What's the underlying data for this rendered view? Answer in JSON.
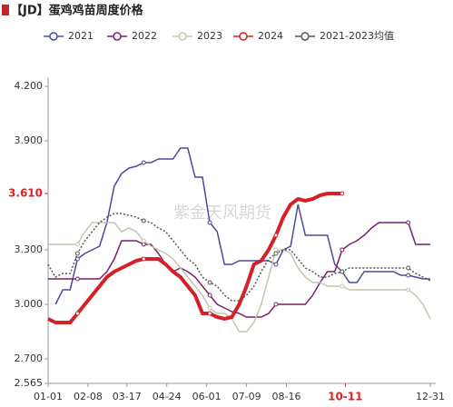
{
  "chart_data": {
    "type": "line",
    "title": "【JD】蛋鸡鸡苗周度价格",
    "watermark": "紫金天风期货",
    "x": [
      0,
      7,
      14,
      21,
      28,
      35,
      42,
      49,
      56,
      63,
      70,
      77,
      84,
      91,
      98,
      105,
      112,
      119,
      126,
      133,
      140,
      147,
      154,
      161,
      168,
      175,
      182,
      189,
      196,
      203,
      210,
      217,
      224,
      231,
      238,
      245,
      252,
      259,
      266,
      273,
      280,
      287,
      294,
      301,
      308,
      315,
      322,
      329,
      336,
      343,
      350,
      357,
      364
    ],
    "series": [
      {
        "name": "2021",
        "color": "#4a4a9a",
        "width": 1.5,
        "values": [
          null,
          3.0,
          3.08,
          3.08,
          3.25,
          3.28,
          3.3,
          3.32,
          3.45,
          3.65,
          3.72,
          3.75,
          3.76,
          3.78,
          3.78,
          3.8,
          3.8,
          3.8,
          3.86,
          3.86,
          3.7,
          3.7,
          3.45,
          3.4,
          3.22,
          3.22,
          3.24,
          3.24,
          3.24,
          3.24,
          3.24,
          3.22,
          3.3,
          3.32,
          3.55,
          3.38,
          3.38,
          3.38,
          3.38,
          3.22,
          3.18,
          3.12,
          3.12,
          3.18,
          3.18,
          3.18,
          3.18,
          3.18,
          3.16,
          3.16,
          3.15,
          3.14,
          3.14
        ]
      },
      {
        "name": "2022",
        "color": "#7a1f6a",
        "width": 1.5,
        "values": [
          3.14,
          3.14,
          3.14,
          3.14,
          3.14,
          3.14,
          3.14,
          3.14,
          3.18,
          3.25,
          3.35,
          3.35,
          3.35,
          3.33,
          3.33,
          3.28,
          3.22,
          3.18,
          3.2,
          3.18,
          3.15,
          3.1,
          3.05,
          3.0,
          2.98,
          2.96,
          2.95,
          2.93,
          2.93,
          2.93,
          2.95,
          3.0,
          3.0,
          3.0,
          3.0,
          3.0,
          3.05,
          3.12,
          3.18,
          3.18,
          3.3,
          3.33,
          3.35,
          3.38,
          3.42,
          3.45,
          3.45,
          3.45,
          3.45,
          3.45,
          3.33,
          3.33,
          3.33
        ]
      },
      {
        "name": "2023",
        "color": "#c8c2b0",
        "width": 1.5,
        "values": [
          3.33,
          3.33,
          3.33,
          3.33,
          3.33,
          3.4,
          3.45,
          3.45,
          3.45,
          3.45,
          3.4,
          3.42,
          3.4,
          3.35,
          3.32,
          3.3,
          3.28,
          3.25,
          3.2,
          3.15,
          3.1,
          3.05,
          2.98,
          2.95,
          2.95,
          2.92,
          2.85,
          2.85,
          2.9,
          3.0,
          3.15,
          3.3,
          3.3,
          3.28,
          3.2,
          3.15,
          3.12,
          3.12,
          3.1,
          3.1,
          3.1,
          3.08,
          3.08,
          3.08,
          3.08,
          3.08,
          3.08,
          3.08,
          3.08,
          3.08,
          3.05,
          3.0,
          2.92
        ]
      },
      {
        "name": "2024",
        "color": "#d42027",
        "width": 4,
        "values": [
          2.92,
          2.9,
          2.9,
          2.9,
          2.95,
          3.0,
          3.05,
          3.1,
          3.15,
          3.18,
          3.2,
          3.22,
          3.24,
          3.25,
          3.25,
          3.25,
          3.22,
          3.18,
          3.15,
          3.1,
          3.05,
          2.95,
          2.95,
          2.93,
          2.92,
          2.93,
          3.0,
          3.1,
          3.22,
          3.24,
          3.3,
          3.38,
          3.48,
          3.55,
          3.58,
          3.57,
          3.58,
          3.6,
          3.61,
          3.61,
          3.61,
          null,
          null,
          null,
          null,
          null,
          null,
          null,
          null,
          null,
          null,
          null,
          null
        ]
      },
      {
        "name": "2021-2023均值",
        "color": "#555555",
        "width": 1.5,
        "dash": "2,2",
        "values": [
          3.22,
          3.15,
          3.17,
          3.17,
          3.28,
          3.35,
          3.4,
          3.45,
          3.48,
          3.5,
          3.5,
          3.49,
          3.48,
          3.46,
          3.45,
          3.42,
          3.4,
          3.35,
          3.3,
          3.25,
          3.22,
          3.15,
          3.12,
          3.1,
          3.05,
          3.02,
          3.02,
          3.05,
          3.1,
          3.18,
          3.25,
          3.28,
          3.3,
          3.3,
          3.25,
          3.2,
          3.18,
          3.15,
          3.15,
          3.17,
          3.18,
          3.2,
          3.2,
          3.2,
          3.2,
          3.2,
          3.2,
          3.2,
          3.2,
          3.2,
          3.17,
          3.15,
          3.13
        ]
      }
    ],
    "xlim": [
      0,
      364
    ],
    "xticks": [
      {
        "value": 0,
        "label": "01-01"
      },
      {
        "value": 38,
        "label": "02-08"
      },
      {
        "value": 75,
        "label": "03-17"
      },
      {
        "value": 113,
        "label": "04-24"
      },
      {
        "value": 151,
        "label": "06-01"
      },
      {
        "value": 189,
        "label": "07-09"
      },
      {
        "value": 227,
        "label": "08-16"
      },
      {
        "value": 364,
        "label": "12-31"
      }
    ],
    "ylim": [
      2.565,
      4.2
    ],
    "yticks": [
      {
        "value": 2.565,
        "label": "2.565"
      },
      {
        "value": 2.7,
        "label": "2.700"
      },
      {
        "value": 3.0,
        "label": "3.000"
      },
      {
        "value": 3.3,
        "label": "3.300"
      },
      {
        "value": 3.9,
        "label": "3.900"
      },
      {
        "value": 4.2,
        "label": "4.200"
      }
    ],
    "current_y": {
      "value": 3.61,
      "label": "3.610"
    },
    "current_x": {
      "value": 283,
      "label": "10-11"
    }
  }
}
